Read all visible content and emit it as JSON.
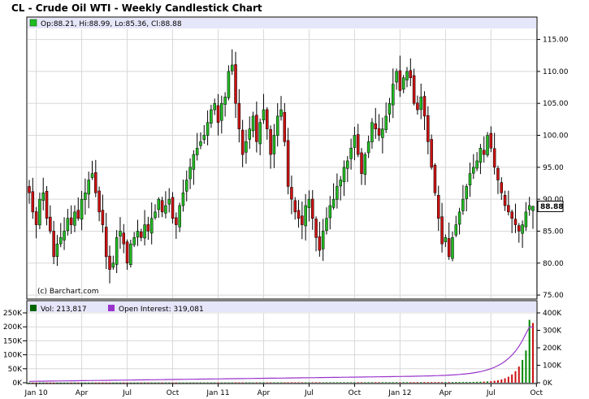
{
  "title": "CL - Crude Oil WTI - Weekly Candlestick Chart",
  "price_panel": {
    "legend": "Op:88.21, Hi:88.99, Lo:85.36, Cl:88.88",
    "last_price_label": "88.88",
    "copyright": "(c) Barchart.com"
  },
  "volume_panel": {
    "vol_label": "Vol: 213,817",
    "oi_label": "Open Interest: 319,081"
  },
  "colors": {
    "up": "#22bb22",
    "down": "#cc1111",
    "open_interest": "#9933cc",
    "legend_band": "#e6e6fa",
    "grid": "#d8d8d8",
    "border": "#000000"
  },
  "chart_data": [
    {
      "type": "candlestick",
      "title": "CL - Crude Oil WTI - Weekly Candlestick Chart",
      "x_tick_labels": [
        "Jan 10",
        "Apr",
        "Jul",
        "Oct",
        "Jan 11",
        "Apr",
        "Jul",
        "Oct",
        "Jan 12",
        "Apr",
        "Jul",
        "Oct"
      ],
      "x_tick_weeks": [
        2,
        15,
        28,
        41,
        54,
        67,
        80,
        93,
        106,
        119,
        132,
        145
      ],
      "y_ticks": [
        75,
        80,
        85,
        90,
        95,
        100,
        105,
        110,
        115
      ],
      "y_tick_labels": [
        "75.00",
        "80.00",
        "85.00",
        "90.00",
        "95.00",
        "100.00",
        "105.00",
        "110.00",
        "115.00"
      ],
      "ylim": [
        74.5,
        116.6
      ],
      "last": {
        "open": 88.21,
        "high": 88.99,
        "low": 85.36,
        "close": 88.88
      },
      "closes": [
        91,
        88,
        86,
        90,
        91,
        87,
        85,
        81,
        83,
        84,
        85,
        87,
        86,
        88,
        87,
        90,
        91,
        93,
        94,
        91,
        88,
        86,
        81,
        79,
        80,
        84,
        85,
        83,
        80,
        83,
        84,
        85,
        84,
        86,
        85,
        87,
        88,
        90,
        88,
        89,
        90,
        87,
        86,
        89,
        91,
        93,
        95,
        97,
        98,
        99,
        100,
        102,
        104,
        105,
        102,
        105,
        106,
        110,
        111,
        105,
        101,
        97,
        99,
        101,
        103,
        99,
        102,
        104,
        101,
        97,
        100,
        103,
        104,
        99,
        92,
        90,
        88,
        87,
        86,
        89,
        90,
        87,
        84,
        82,
        85,
        87,
        89,
        90,
        92,
        93,
        95,
        96,
        98,
        100,
        97,
        94,
        97,
        99,
        102,
        101,
        100,
        101,
        103,
        105,
        108,
        110,
        107,
        109,
        110,
        109,
        105,
        104,
        106,
        103,
        99,
        95,
        91,
        87,
        83,
        84,
        81,
        84,
        86,
        88,
        90,
        92,
        94,
        95,
        96,
        98,
        97,
        100,
        98,
        95,
        93,
        91,
        89,
        88,
        87,
        86,
        85,
        86,
        88,
        89,
        88.88
      ]
    },
    {
      "type": "bar+line",
      "series": [
        {
          "name": "Vol",
          "type": "bar"
        },
        {
          "name": "Open Interest",
          "type": "line"
        }
      ],
      "vol_y_ticks": [
        0,
        50000,
        100000,
        150000,
        200000,
        250000
      ],
      "vol_y_tick_labels": [
        "0K",
        "50K",
        "100K",
        "150K",
        "200K",
        "250K"
      ],
      "vol_ylim": [
        0,
        250000
      ],
      "oi_y_ticks": [
        0,
        100000,
        200000,
        300000,
        400000
      ],
      "oi_y_tick_labels": [
        "0K",
        "100K",
        "200K",
        "300K",
        "400K"
      ],
      "oi_ylim": [
        0,
        400000
      ],
      "last_vol": 213817,
      "last_open_interest": 319081
    }
  ]
}
